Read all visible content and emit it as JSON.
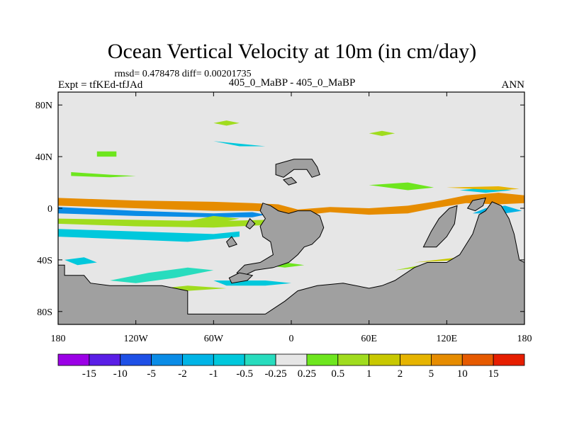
{
  "chart_data": {
    "type": "heatmap",
    "title": "Ocean Vertical Velocity at 10m (in cm/day)",
    "stats_line": "rmsd= 0.478478 diff= 0.00201735",
    "left_label": "Expt = tfKEd-tfJAd",
    "center_label": "405_0_MaBP - 405_0_MaBP",
    "right_label": "ANN",
    "x_ticks": [
      {
        "value": -180,
        "label": "180"
      },
      {
        "value": -120,
        "label": "120W"
      },
      {
        "value": -60,
        "label": "60W"
      },
      {
        "value": 0,
        "label": "0"
      },
      {
        "value": 60,
        "label": "60E"
      },
      {
        "value": 120,
        "label": "120E"
      },
      {
        "value": 180,
        "label": "180"
      }
    ],
    "y_ticks": [
      {
        "value": 80,
        "label": "80N"
      },
      {
        "value": 40,
        "label": "40N"
      },
      {
        "value": 0,
        "label": "0"
      },
      {
        "value": -40,
        "label": "40S"
      },
      {
        "value": -80,
        "label": "80S"
      }
    ],
    "xlim": [
      -180,
      180
    ],
    "ylim": [
      -90,
      90
    ],
    "ocean_color": "#e6e6e6",
    "land_color": "#a0a0a0",
    "colorbar": {
      "colors": [
        "#9b00e6",
        "#5a1ee6",
        "#1e50e6",
        "#0a8ce6",
        "#00b4e6",
        "#00c8dc",
        "#28dcbe",
        "#e6e6e6",
        "#6ee61e",
        "#a0dc1e",
        "#c8c800",
        "#e6b400",
        "#e68c00",
        "#e65a00",
        "#e61e00"
      ],
      "labels": [
        "-15",
        "-10",
        "-5",
        "-2",
        "-1",
        "-0.5",
        "-0.25",
        "0.25",
        "0.5",
        "1",
        "2",
        "5",
        "10",
        "15"
      ]
    },
    "land": [
      [
        [
          -180,
          -44
        ],
        [
          -175,
          -44
        ],
        [
          -175,
          -52
        ],
        [
          -160,
          -52
        ],
        [
          -155,
          -58
        ],
        [
          -140,
          -60
        ],
        [
          -120,
          -60
        ],
        [
          -100,
          -60
        ],
        [
          -80,
          -64
        ],
        [
          -80,
          -82
        ],
        [
          -40,
          -82
        ],
        [
          -20,
          -82
        ],
        [
          -5,
          -72
        ],
        [
          5,
          -64
        ],
        [
          20,
          -60
        ],
        [
          40,
          -58
        ],
        [
          60,
          -62
        ],
        [
          70,
          -60
        ],
        [
          80,
          -56
        ],
        [
          95,
          -46
        ],
        [
          105,
          -42
        ],
        [
          120,
          -42
        ],
        [
          130,
          -36
        ],
        [
          140,
          -20
        ],
        [
          145,
          -5
        ],
        [
          150,
          -2
        ],
        [
          155,
          5
        ],
        [
          162,
          2
        ],
        [
          168,
          -8
        ],
        [
          172,
          -20
        ],
        [
          176,
          -40
        ],
        [
          180,
          -42
        ],
        [
          180,
          -90
        ],
        [
          -180,
          -90
        ]
      ],
      [
        [
          -22,
          4
        ],
        [
          -16,
          2
        ],
        [
          -10,
          -2
        ],
        [
          -2,
          -4
        ],
        [
          5,
          -2
        ],
        [
          15,
          -2
        ],
        [
          22,
          -6
        ],
        [
          25,
          -15
        ],
        [
          22,
          -22
        ],
        [
          16,
          -28
        ],
        [
          10,
          -30
        ],
        [
          5,
          -36
        ],
        [
          -2,
          -42
        ],
        [
          -14,
          -46
        ],
        [
          -28,
          -48
        ],
        [
          -36,
          -52
        ],
        [
          -42,
          -50
        ],
        [
          -36,
          -44
        ],
        [
          -24,
          -42
        ],
        [
          -14,
          -36
        ],
        [
          -16,
          -26
        ],
        [
          -22,
          -22
        ],
        [
          -24,
          -14
        ],
        [
          -20,
          -8
        ],
        [
          -24,
          -2
        ]
      ],
      [
        [
          -40,
          -50
        ],
        [
          -48,
          -54
        ],
        [
          -46,
          -58
        ],
        [
          -34,
          -56
        ],
        [
          -30,
          -52
        ]
      ],
      [
        [
          -35,
          -14
        ],
        [
          -32,
          -8
        ],
        [
          -28,
          -12
        ],
        [
          -32,
          -16
        ]
      ],
      [
        [
          -50,
          -26
        ],
        [
          -46,
          -22
        ],
        [
          -42,
          -28
        ],
        [
          -48,
          -30
        ]
      ],
      [
        [
          -12,
          34
        ],
        [
          2,
          38
        ],
        [
          16,
          38
        ],
        [
          20,
          32
        ],
        [
          22,
          26
        ],
        [
          16,
          24
        ],
        [
          12,
          30
        ],
        [
          2,
          30
        ],
        [
          -6,
          24
        ],
        [
          -12,
          26
        ]
      ],
      [
        [
          -6,
          22
        ],
        [
          0,
          24
        ],
        [
          4,
          20
        ],
        [
          -2,
          18
        ]
      ],
      [
        [
          102,
          -30
        ],
        [
          108,
          -18
        ],
        [
          114,
          -8
        ],
        [
          122,
          0
        ],
        [
          128,
          2
        ],
        [
          126,
          -12
        ],
        [
          120,
          -22
        ],
        [
          112,
          -30
        ]
      ],
      [
        [
          136,
          0
        ],
        [
          140,
          6
        ],
        [
          150,
          8
        ],
        [
          148,
          2
        ],
        [
          142,
          -2
        ]
      ]
    ],
    "bands": [
      {
        "c": 12,
        "p": [
          [
            -180,
            8
          ],
          [
            -120,
            6
          ],
          [
            -60,
            5
          ],
          [
            -30,
            4
          ],
          [
            -10,
            3
          ],
          [
            5,
            -1
          ],
          [
            30,
            1
          ],
          [
            60,
            0
          ],
          [
            90,
            2
          ],
          [
            110,
            5
          ],
          [
            135,
            10
          ],
          [
            160,
            12
          ],
          [
            180,
            10
          ],
          [
            180,
            4
          ],
          [
            160,
            3
          ],
          [
            135,
            4
          ],
          [
            110,
            0
          ],
          [
            90,
            -4
          ],
          [
            60,
            -5
          ],
          [
            30,
            -3
          ],
          [
            5,
            -6
          ],
          [
            -10,
            -3
          ],
          [
            -30,
            -2
          ],
          [
            -60,
            -2
          ],
          [
            -120,
            0
          ],
          [
            -180,
            2
          ]
        ]
      },
      {
        "c": 3,
        "p": [
          [
            -180,
            1
          ],
          [
            -120,
            -2
          ],
          [
            -60,
            -4
          ],
          [
            -30,
            -3
          ],
          [
            -20,
            -5
          ],
          [
            -30,
            -7
          ],
          [
            -60,
            -7
          ],
          [
            -120,
            -6
          ],
          [
            -180,
            -4
          ]
        ]
      },
      {
        "c": 9,
        "p": [
          [
            -180,
            -8
          ],
          [
            -120,
            -9
          ],
          [
            -60,
            -10
          ],
          [
            -20,
            -9
          ],
          [
            -20,
            -13
          ],
          [
            -60,
            -15
          ],
          [
            -120,
            -14
          ],
          [
            -180,
            -12
          ]
        ]
      },
      {
        "c": 5,
        "p": [
          [
            -180,
            -16
          ],
          [
            -120,
            -18
          ],
          [
            -60,
            -20
          ],
          [
            -40,
            -18
          ],
          [
            -40,
            -22
          ],
          [
            -80,
            -26
          ],
          [
            -130,
            -24
          ],
          [
            -180,
            -22
          ]
        ]
      },
      {
        "c": 8,
        "p": [
          [
            -170,
            28
          ],
          [
            -140,
            26
          ],
          [
            -120,
            25
          ],
          [
            -140,
            24
          ],
          [
            -170,
            25
          ]
        ]
      },
      {
        "c": 8,
        "p": [
          [
            -150,
            44
          ],
          [
            -135,
            44
          ],
          [
            -135,
            40
          ],
          [
            -150,
            40
          ]
        ]
      },
      {
        "c": 6,
        "p": [
          [
            -140,
            -56
          ],
          [
            -110,
            -50
          ],
          [
            -80,
            -46
          ],
          [
            -60,
            -48
          ],
          [
            -90,
            -54
          ],
          [
            -120,
            -58
          ]
        ]
      },
      {
        "c": 9,
        "p": [
          [
            -100,
            -62
          ],
          [
            -80,
            -60
          ],
          [
            -50,
            -62
          ],
          [
            -80,
            -64
          ]
        ]
      },
      {
        "c": 5,
        "p": [
          [
            -60,
            -56
          ],
          [
            -20,
            -56
          ],
          [
            0,
            -58
          ],
          [
            -20,
            -60
          ],
          [
            -50,
            -60
          ]
        ]
      },
      {
        "c": 9,
        "p": [
          [
            60,
            58
          ],
          [
            70,
            60
          ],
          [
            80,
            58
          ],
          [
            70,
            56
          ]
        ]
      },
      {
        "c": 9,
        "p": [
          [
            -60,
            66
          ],
          [
            -50,
            68
          ],
          [
            -40,
            66
          ],
          [
            -50,
            64
          ]
        ]
      },
      {
        "c": 5,
        "p": [
          [
            130,
            14
          ],
          [
            150,
            16
          ],
          [
            170,
            14
          ],
          [
            150,
            12
          ]
        ]
      },
      {
        "c": 11,
        "p": [
          [
            120,
            16
          ],
          [
            160,
            17
          ],
          [
            176,
            15
          ],
          [
            160,
            14
          ]
        ]
      },
      {
        "c": 9,
        "p": [
          [
            80,
            -48
          ],
          [
            100,
            -44
          ],
          [
            120,
            -42
          ],
          [
            100,
            -46
          ]
        ]
      },
      {
        "c": 10,
        "p": [
          [
            95,
            -42
          ],
          [
            130,
            -40
          ],
          [
            160,
            -36
          ],
          [
            130,
            -38
          ]
        ]
      },
      {
        "c": 9,
        "p": [
          [
            -80,
            -10
          ],
          [
            -60,
            -6
          ],
          [
            -40,
            -8
          ],
          [
            -60,
            -12
          ]
        ]
      },
      {
        "c": 4,
        "p": [
          [
            140,
            -4
          ],
          [
            150,
            0
          ],
          [
            165,
            2
          ],
          [
            178,
            -2
          ],
          [
            165,
            -4
          ]
        ]
      },
      {
        "c": 12,
        "p": [
          [
            160,
            6
          ],
          [
            170,
            8
          ],
          [
            178,
            6
          ],
          [
            170,
            4
          ]
        ]
      },
      {
        "c": 5,
        "p": [
          [
            -175,
            -40
          ],
          [
            -160,
            -38
          ],
          [
            -150,
            -42
          ],
          [
            -165,
            -44
          ]
        ]
      },
      {
        "c": 5,
        "p": [
          [
            170,
            -48
          ],
          [
            176,
            -46
          ],
          [
            180,
            -48
          ],
          [
            176,
            -50
          ]
        ]
      },
      {
        "c": 8,
        "p": [
          [
            60,
            18
          ],
          [
            90,
            20
          ],
          [
            110,
            16
          ],
          [
            90,
            14
          ]
        ]
      },
      {
        "c": 5,
        "p": [
          [
            -60,
            52
          ],
          [
            -40,
            50
          ],
          [
            -20,
            48
          ],
          [
            -40,
            48
          ]
        ]
      },
      {
        "c": 8,
        "p": [
          [
            -20,
            -44
          ],
          [
            -5,
            -42
          ],
          [
            10,
            -44
          ],
          [
            -5,
            -46
          ]
        ]
      }
    ]
  }
}
